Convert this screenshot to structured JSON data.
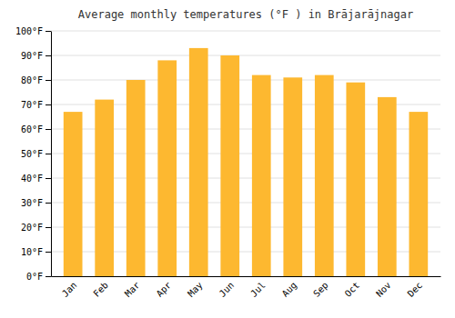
{
  "chart_data": {
    "type": "bar",
    "title": "Average monthly temperatures (°F ) in Brājarājnagar",
    "categories": [
      "Jan",
      "Feb",
      "Mar",
      "Apr",
      "May",
      "Jun",
      "Jul",
      "Aug",
      "Sep",
      "Oct",
      "Nov",
      "Dec"
    ],
    "values": [
      67,
      72,
      80,
      88,
      93,
      90,
      82,
      81,
      82,
      79,
      73,
      67
    ],
    "color": "#FDB830",
    "ylim": [
      0,
      100
    ],
    "yticks": [
      {
        "value": 0,
        "label": "0°F"
      },
      {
        "value": 10,
        "label": "10°F"
      },
      {
        "value": 20,
        "label": "20°F"
      },
      {
        "value": 30,
        "label": "30°F"
      },
      {
        "value": 40,
        "label": "40°F"
      },
      {
        "value": 50,
        "label": "50°F"
      },
      {
        "value": 60,
        "label": "60°F"
      },
      {
        "value": 70,
        "label": "70°F"
      },
      {
        "value": 80,
        "label": "80°F"
      },
      {
        "value": 90,
        "label": "90°F"
      },
      {
        "value": 100,
        "label": "100°F"
      }
    ],
    "grid": true
  }
}
